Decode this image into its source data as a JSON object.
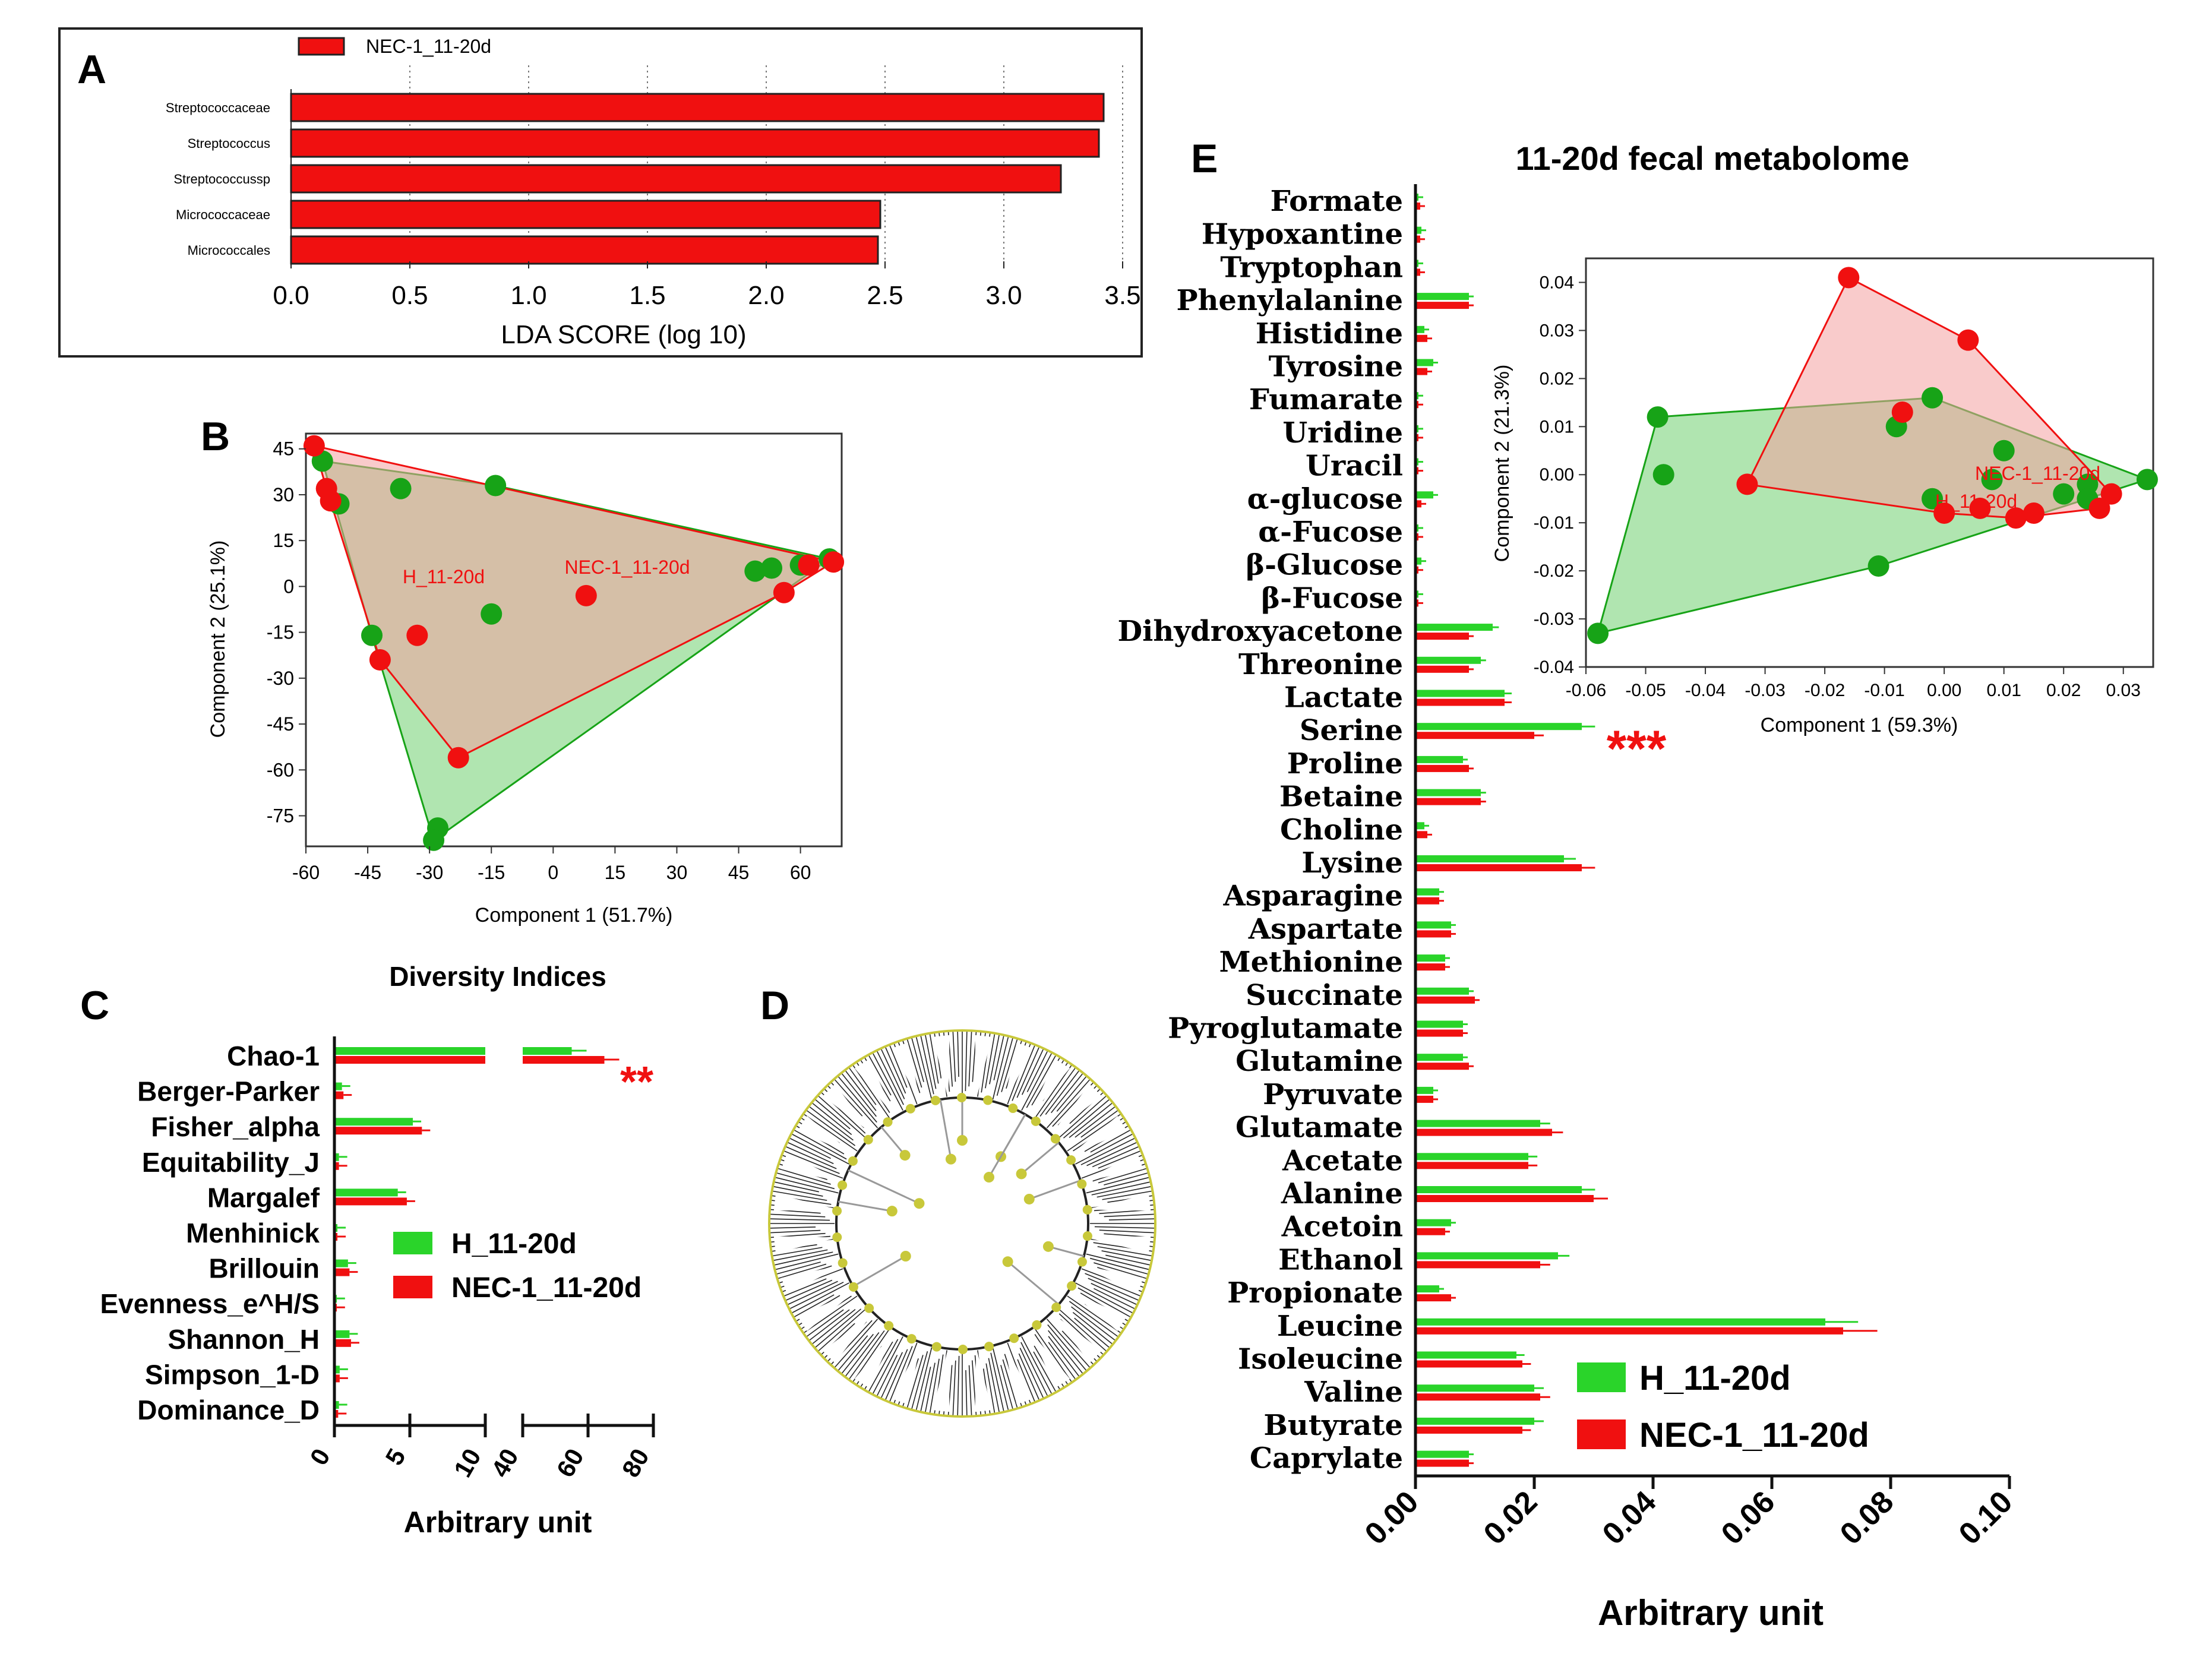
{
  "colors": {
    "red": "#f01010",
    "green": "#17a317",
    "bar_green": "#2ad42a",
    "hull_green_fill": "#6fcf6f",
    "hull_red_fill": "#f4a0a0",
    "tree": "#000000",
    "node": "#c8c83a"
  },
  "chart_data": [
    {
      "id": "A",
      "panel_label": "A",
      "type": "bar",
      "orientation": "horizontal",
      "legend": [
        "NEC-1_11-20d"
      ],
      "categories": [
        "Streptococcaceae",
        "Streptococcus",
        "Streptococcussp",
        "Micrococcaceae",
        "Micrococcales"
      ],
      "values": [
        3.42,
        3.4,
        3.24,
        2.48,
        2.47
      ],
      "xlim": [
        0,
        3.5
      ],
      "ticks": [
        "0.0",
        "0.5",
        "1.0",
        "1.5",
        "2.0",
        "2.5",
        "3.0",
        "3.5"
      ],
      "xlabel": "LDA SCORE (log 10)",
      "grid": "dotted vertical"
    },
    {
      "id": "B",
      "panel_label": "B",
      "type": "scatter",
      "subtype": "PCA with convex hulls",
      "xlabel": "Component 1 (51.7%)",
      "ylabel": "Component 2 (25.1%)",
      "xlim": [
        -60,
        70
      ],
      "ylim": [
        -85,
        50
      ],
      "xticks": [
        "-60",
        "-45",
        "-30",
        "-15",
        "0",
        "15",
        "30",
        "45",
        "60"
      ],
      "yticks": [
        "45",
        "30",
        "15",
        "0",
        "-15",
        "-30",
        "-45",
        "-60",
        "-75"
      ],
      "group_labels": [
        "H_11-20d",
        "NEC-1_11-20d"
      ],
      "series": [
        {
          "name": "H_11-20d",
          "points": [
            [
              -56,
              41
            ],
            [
              -52,
              27
            ],
            [
              -37,
              32
            ],
            [
              -14,
              33
            ],
            [
              -44,
              -16
            ],
            [
              -15,
              -9
            ],
            [
              49,
              5
            ],
            [
              53,
              6
            ],
            [
              60,
              7
            ],
            [
              67,
              9
            ],
            [
              -28,
              -79
            ],
            [
              -29,
              -83
            ]
          ]
        },
        {
          "name": "NEC-1_11-20d",
          "points": [
            [
              -58,
              46
            ],
            [
              -55,
              32
            ],
            [
              -54,
              28
            ],
            [
              -33,
              -16
            ],
            [
              -42,
              -24
            ],
            [
              -23,
              -56
            ],
            [
              8,
              -3
            ],
            [
              56,
              -2
            ],
            [
              62,
              7
            ],
            [
              68,
              8
            ]
          ]
        }
      ]
    },
    {
      "id": "C",
      "panel_label": "C",
      "type": "bar",
      "orientation": "horizontal",
      "title": "Diversity Indices",
      "xlabel": "Arbitrary unit",
      "xticks_left": [
        "0",
        "5",
        "10"
      ],
      "xticks_right": [
        "40",
        "60",
        "80"
      ],
      "axis_break": [
        10,
        40
      ],
      "categories": [
        "Chao-1",
        "Berger-Parker",
        "Fisher_alpha",
        "Equitability_J",
        "Margalef",
        "Menhinick",
        "Brillouin",
        "Evenness_e^H/S",
        "Shannon_H",
        "Simpson_1-D",
        "Dominance_D"
      ],
      "series": [
        {
          "name": "H_11-20d",
          "values": [
            55,
            0.5,
            5.2,
            0.3,
            4.2,
            0.2,
            0.9,
            0.15,
            1.0,
            0.35,
            0.3
          ]
        },
        {
          "name": "NEC-1_11-20d",
          "values": [
            65,
            0.6,
            5.8,
            0.3,
            4.8,
            0.2,
            1.0,
            0.15,
            1.1,
            0.35,
            0.25
          ]
        }
      ],
      "significance": [
        {
          "category": "Chao-1",
          "mark": "**"
        }
      ],
      "legend": [
        "H_11-20d",
        "NEC-1_11-20d"
      ]
    },
    {
      "id": "D",
      "panel_label": "D",
      "type": "other",
      "subtype": "circular cladogram"
    },
    {
      "id": "E",
      "panel_label": "E",
      "type": "bar",
      "orientation": "horizontal",
      "title": "11-20d fecal metabolome",
      "xlabel": "Arbitrary unit",
      "xlim": [
        0,
        0.1
      ],
      "ticks": [
        "0.00",
        "0.02",
        "0.04",
        "0.06",
        "0.08",
        "0.10"
      ],
      "categories": [
        "Formate",
        "Hypoxantine",
        "Tryptophan",
        "Phenylalanine",
        "Histidine",
        "Tyrosine",
        "Fumarate",
        "Uridine",
        "Uracil",
        "α-glucose",
        "α-Fucose",
        "β-Glucose",
        "β-Fucose",
        "Dihydroxyacetone",
        "Threonine",
        "Lactate",
        "Serine",
        "Proline",
        "Betaine",
        "Choline",
        "Lysine",
        "Asparagine",
        "Aspartate",
        "Methionine",
        "Succinate",
        "Pyroglutamate",
        "Glutamine",
        "Pyruvate",
        "Glutamate",
        "Acetate",
        "Alanine",
        "Acetoin",
        "Ethanol",
        "Propionate",
        "Leucine",
        "Isoleucine",
        "Valine",
        "Butyrate",
        "Caprylate"
      ],
      "series": [
        {
          "name": "H_11-20d",
          "values": [
            0.0003,
            0.001,
            0.0005,
            0.009,
            0.0015,
            0.003,
            0.0003,
            0.0005,
            0.0003,
            0.003,
            0.0003,
            0.001,
            0.0005,
            0.013,
            0.011,
            0.015,
            0.028,
            0.008,
            0.011,
            0.0015,
            0.025,
            0.004,
            0.006,
            0.005,
            0.009,
            0.008,
            0.008,
            0.003,
            0.021,
            0.019,
            0.028,
            0.006,
            0.024,
            0.004,
            0.069,
            0.017,
            0.02,
            0.02,
            0.009
          ]
        },
        {
          "name": "NEC-1_11-20d",
          "values": [
            0.0008,
            0.0008,
            0.0008,
            0.009,
            0.002,
            0.002,
            0.0003,
            0.0005,
            0.0003,
            0.001,
            0.0003,
            0.0005,
            0.0005,
            0.009,
            0.009,
            0.015,
            0.02,
            0.009,
            0.011,
            0.002,
            0.028,
            0.004,
            0.006,
            0.005,
            0.01,
            0.008,
            0.009,
            0.003,
            0.023,
            0.019,
            0.03,
            0.005,
            0.021,
            0.006,
            0.072,
            0.018,
            0.021,
            0.018,
            0.009
          ]
        }
      ],
      "significance": [
        {
          "category": "Serine",
          "mark": "***"
        }
      ],
      "legend": [
        "H_11-20d",
        "NEC-1_11-20d"
      ]
    },
    {
      "id": "E_inset",
      "type": "scatter",
      "subtype": "PCA with convex hulls",
      "xlabel": "Component 1 (59.3%)",
      "ylabel": "Component 2 (21.3%)",
      "xlim": [
        -0.06,
        0.035
      ],
      "ylim": [
        -0.04,
        0.045
      ],
      "xticks": [
        "-0.06",
        "-0.05",
        "-0.04",
        "-0.03",
        "-0.02",
        "-0.01",
        "0.00",
        "0.01",
        "0.02",
        "0.03"
      ],
      "yticks": [
        "0.04",
        "0.03",
        "0.02",
        "0.01",
        "0.00",
        "-0.01",
        "-0.02",
        "-0.03",
        "-0.04"
      ],
      "group_labels": [
        "NEC-1_11-20d",
        "H_11-20d"
      ],
      "series": [
        {
          "name": "H_11-20d",
          "points": [
            [
              -0.048,
              0.012
            ],
            [
              -0.047,
              0.0
            ],
            [
              -0.058,
              -0.033
            ],
            [
              -0.011,
              -0.019
            ],
            [
              -0.008,
              0.01
            ],
            [
              -0.002,
              0.016
            ],
            [
              0.01,
              0.005
            ],
            [
              0.008,
              -0.001
            ],
            [
              -0.002,
              -0.005
            ],
            [
              0.02,
              -0.004
            ],
            [
              0.024,
              -0.002
            ],
            [
              0.024,
              -0.005
            ],
            [
              0.034,
              -0.001
            ]
          ]
        },
        {
          "name": "NEC-1_11-20d",
          "points": [
            [
              -0.016,
              0.041
            ],
            [
              0.004,
              0.028
            ],
            [
              -0.007,
              0.013
            ],
            [
              -0.033,
              -0.002
            ],
            [
              0.0,
              -0.008
            ],
            [
              0.006,
              -0.007
            ],
            [
              0.012,
              -0.009
            ],
            [
              0.015,
              -0.008
            ],
            [
              0.026,
              -0.007
            ],
            [
              0.028,
              -0.004
            ]
          ]
        }
      ]
    }
  ]
}
